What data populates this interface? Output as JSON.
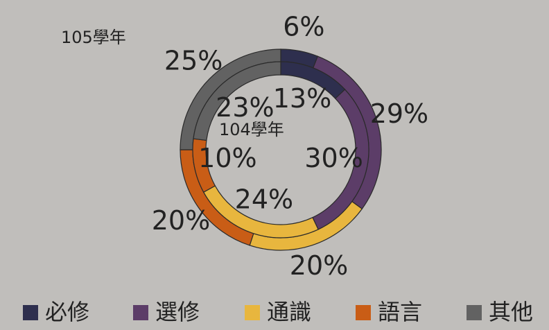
{
  "chart_data": {
    "type": "doughnut",
    "categories": [
      "必修",
      "選修",
      "通識",
      "語言",
      "其他"
    ],
    "colors": [
      "#2e2f4e",
      "#5c3d68",
      "#e8b63e",
      "#c95d16",
      "#626262"
    ],
    "series": [
      {
        "name": "105學年",
        "values": [
          6,
          29,
          20,
          20,
          25
        ],
        "value_labels": [
          "6%",
          "29%",
          "20%",
          "20%",
          "25%"
        ]
      },
      {
        "name": "104學年",
        "values": [
          13,
          30,
          24,
          10,
          23
        ],
        "value_labels": [
          "13%",
          "30%",
          "24%",
          "10%",
          "23%"
        ]
      }
    ],
    "legend": "bottom"
  }
}
